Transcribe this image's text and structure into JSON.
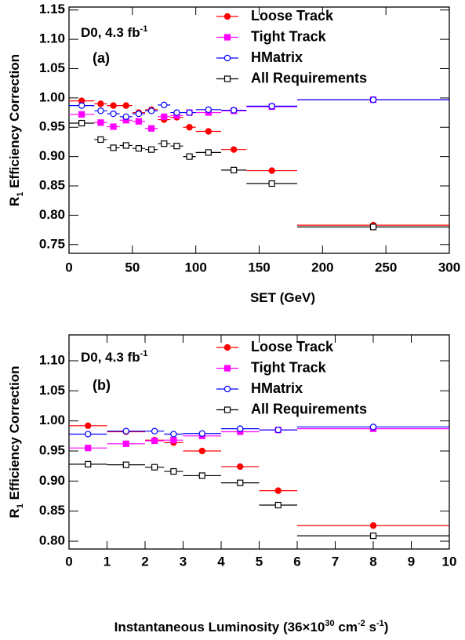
{
  "chart_data": [
    {
      "type": "scatter",
      "annotation": [
        {
          "text": "D0, 4.3 fb"
        },
        {
          "text": "-1",
          "sup": true
        }
      ],
      "panel_label": "(a)",
      "xlabel": [
        {
          "text": "SET (GeV)"
        }
      ],
      "ylabel": [
        {
          "text": "R"
        },
        {
          "text": "1",
          "sub": true
        },
        {
          "text": " Efficiency Correction"
        }
      ],
      "xlim": [
        0,
        300
      ],
      "xticks": [
        0,
        50,
        100,
        150,
        200,
        250,
        300
      ],
      "ylim": [
        0.735,
        1.155
      ],
      "yticks": [
        0.75,
        {
          "value": 0.8,
          "label": "0.80"
        },
        0.85,
        {
          "value": 0.9,
          "label": "0.90"
        },
        0.95,
        {
          "value": 1.0,
          "label": "1.00"
        },
        1.05,
        {
          "value": 1.1,
          "label": "1.10"
        },
        1.15
      ],
      "legend": "top-right",
      "bins": [
        0,
        20,
        30,
        40,
        50,
        60,
        70,
        80,
        90,
        100,
        120,
        140,
        180,
        300
      ],
      "x": [
        10,
        25,
        35,
        45,
        55,
        65,
        75,
        85,
        95,
        110,
        130,
        160,
        240
      ],
      "series": [
        {
          "name": "Loose Track",
          "color": "#ff0000",
          "marker": "circle",
          "filled": true,
          "values": [
            0.995,
            0.99,
            0.987,
            0.987,
            0.975,
            0.98,
            0.963,
            0.967,
            0.95,
            0.943,
            0.912,
            0.876,
            0.783
          ]
        },
        {
          "name": "Tight Track",
          "color": "#ff00ff",
          "marker": "square",
          "filled": true,
          "values": [
            0.972,
            0.958,
            0.951,
            0.962,
            0.96,
            0.948,
            0.968,
            0.97,
            0.975,
            0.975,
            0.978,
            0.985,
            0.997
          ]
        },
        {
          "name": "HMatrix",
          "color": "#0000ff",
          "marker": "circle",
          "filled": false,
          "values": [
            0.987,
            0.978,
            0.973,
            0.968,
            0.973,
            0.978,
            0.988,
            0.975,
            0.975,
            0.98,
            0.979,
            0.986,
            0.997
          ]
        },
        {
          "name": "All Requirements",
          "color": "#000000",
          "marker": "square",
          "filled": false,
          "values": [
            0.957,
            0.929,
            0.915,
            0.919,
            0.914,
            0.912,
            0.922,
            0.918,
            0.9,
            0.907,
            0.877,
            0.854,
            0.78
          ]
        }
      ]
    },
    {
      "type": "scatter",
      "annotation": [
        {
          "text": "D0, 4.3 fb"
        },
        {
          "text": "-1",
          "sup": true
        }
      ],
      "panel_label": "(b)",
      "xlabel": [
        {
          "text": "Instantaneous Luminosity (36×10"
        },
        {
          "text": "30",
          "sup": true
        },
        {
          "text": " cm"
        },
        {
          "text": "-2",
          "sup": true
        },
        {
          "text": " s"
        },
        {
          "text": "-1",
          "sup": true
        },
        {
          "text": ")"
        }
      ],
      "ylabel": [
        {
          "text": "R"
        },
        {
          "text": "1",
          "sub": true
        },
        {
          "text": " Efficiency Correction"
        }
      ],
      "xlim": [
        0,
        10
      ],
      "xticks": [
        0,
        1,
        2,
        3,
        4,
        5,
        6,
        7,
        8,
        9,
        10
      ],
      "ylim": [
        0.787,
        1.143
      ],
      "yticks": [
        {
          "value": 0.8,
          "label": "0.80"
        },
        0.85,
        {
          "value": 0.9,
          "label": "0.90"
        },
        0.95,
        {
          "value": 1.0,
          "label": "1.00"
        },
        1.05,
        {
          "value": 1.1,
          "label": "1.10"
        }
      ],
      "legend": "top-right",
      "bins": [
        0,
        1,
        2,
        2.5,
        3,
        4,
        5,
        6,
        10
      ],
      "x": [
        0.5,
        1.5,
        2.25,
        2.75,
        3.5,
        4.5,
        5.5,
        8
      ],
      "series": [
        {
          "name": "Loose Track",
          "color": "#ff0000",
          "marker": "circle",
          "filled": true,
          "values": [
            0.992,
            0.982,
            0.968,
            0.964,
            0.95,
            0.924,
            0.884,
            0.826
          ]
        },
        {
          "name": "Tight Track",
          "color": "#ff00ff",
          "marker": "square",
          "filled": true,
          "values": [
            0.955,
            0.962,
            0.967,
            0.968,
            0.975,
            0.982,
            0.985,
            0.987
          ]
        },
        {
          "name": "HMatrix",
          "color": "#0000ff",
          "marker": "circle",
          "filled": false,
          "values": [
            0.978,
            0.983,
            0.983,
            0.978,
            0.979,
            0.987,
            0.985,
            0.99
          ]
        },
        {
          "name": "All Requirements",
          "color": "#000000",
          "marker": "square",
          "filled": false,
          "values": [
            0.928,
            0.927,
            0.923,
            0.916,
            0.909,
            0.897,
            0.86,
            0.809
          ]
        }
      ]
    }
  ]
}
